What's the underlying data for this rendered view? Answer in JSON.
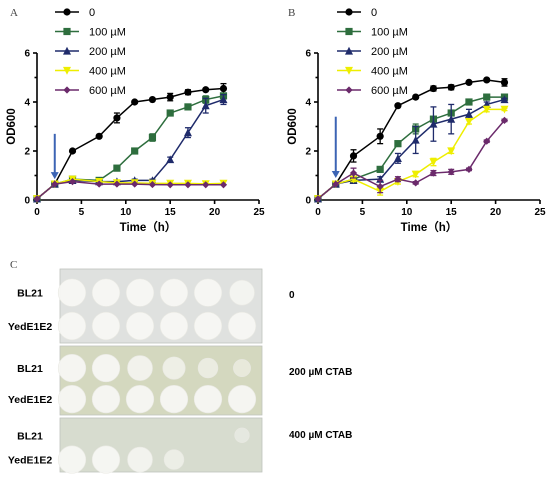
{
  "panel_letters": {
    "a": "A",
    "b": "B",
    "c": "C"
  },
  "chart_data": [
    {
      "type": "line",
      "panel": "A",
      "xlabel": "Time（h）",
      "ylabel": "OD600",
      "xlim": [
        0,
        25
      ],
      "ylim": [
        0,
        6
      ],
      "xticks": [
        "0",
        "5",
        "10",
        "15",
        "20",
        "25"
      ],
      "yticks": [
        "0",
        "2",
        "4",
        "6"
      ],
      "arrow_at": {
        "x": 2,
        "y_from": 2.7,
        "y_to": 0.85
      },
      "series": [
        {
          "name": "0",
          "color": "#000000",
          "marker": "circle",
          "x": [
            0,
            2,
            4,
            7,
            9,
            11,
            13,
            15,
            17,
            19,
            21
          ],
          "y": [
            0.05,
            0.65,
            2.0,
            2.6,
            3.35,
            4.0,
            4.1,
            4.2,
            4.4,
            4.5,
            4.55
          ],
          "err": [
            0,
            0,
            0,
            0.05,
            0.2,
            0.05,
            0.05,
            0.15,
            0.1,
            0.05,
            0.2
          ]
        },
        {
          "name": "100 µM",
          "color": "#2e6e3e",
          "marker": "square",
          "x": [
            0,
            2,
            4,
            7,
            9,
            11,
            13,
            15,
            17,
            19,
            21
          ],
          "y": [
            0.05,
            0.65,
            0.85,
            0.8,
            1.3,
            2.0,
            2.55,
            3.55,
            3.8,
            4.1,
            4.25
          ],
          "err": [
            0,
            0,
            0,
            0.05,
            0.05,
            0.1,
            0.15,
            0.05,
            0.1,
            0.15,
            0.1
          ]
        },
        {
          "name": "200 µM",
          "color": "#1f2b6b",
          "marker": "triangle",
          "x": [
            0,
            2,
            4,
            7,
            9,
            11,
            13,
            15,
            17,
            19,
            21
          ],
          "y": [
            0.05,
            0.65,
            0.8,
            0.75,
            0.75,
            0.8,
            0.8,
            1.65,
            2.75,
            3.85,
            4.1
          ],
          "err": [
            0,
            0,
            0,
            0.05,
            0.05,
            0.05,
            0.05,
            0.1,
            0.2,
            0.3,
            0.2
          ]
        },
        {
          "name": "400 µM",
          "color": "#eeee00",
          "marker": "triangle-down",
          "x": [
            0,
            2,
            4,
            7,
            9,
            11,
            13,
            15,
            17,
            19,
            21
          ],
          "y": [
            0.05,
            0.65,
            0.85,
            0.75,
            0.7,
            0.7,
            0.68,
            0.68,
            0.68,
            0.66,
            0.68
          ],
          "err": [
            0,
            0,
            0,
            0,
            0,
            0,
            0,
            0,
            0,
            0,
            0
          ]
        },
        {
          "name": "600 µM",
          "color": "#6b2a6b",
          "marker": "diamond",
          "x": [
            0,
            2,
            4,
            7,
            9,
            11,
            13,
            15,
            17,
            19,
            21
          ],
          "y": [
            0.05,
            0.65,
            0.75,
            0.65,
            0.65,
            0.65,
            0.63,
            0.62,
            0.62,
            0.62,
            0.62
          ],
          "err": [
            0,
            0,
            0,
            0,
            0,
            0,
            0,
            0,
            0,
            0,
            0
          ]
        }
      ]
    },
    {
      "type": "line",
      "panel": "B",
      "xlabel": "Time（h）",
      "ylabel": "OD600",
      "xlim": [
        0,
        25
      ],
      "ylim": [
        0,
        6
      ],
      "xticks": [
        "0",
        "5",
        "10",
        "15",
        "20",
        "25"
      ],
      "yticks": [
        "0",
        "2",
        "4",
        "6"
      ],
      "arrow_at": {
        "x": 2,
        "y_from": 3.4,
        "y_to": 0.9
      },
      "series": [
        {
          "name": "0",
          "color": "#000000",
          "marker": "circle",
          "x": [
            0,
            2,
            4,
            7,
            9,
            11,
            13,
            15,
            17,
            19,
            21
          ],
          "y": [
            0.05,
            0.65,
            1.8,
            2.6,
            3.85,
            4.2,
            4.55,
            4.6,
            4.8,
            4.9,
            4.8
          ],
          "err": [
            0,
            0,
            0.25,
            0.3,
            0.05,
            0.05,
            0.1,
            0.1,
            0.05,
            0.05,
            0.15
          ]
        },
        {
          "name": "100 µM",
          "color": "#2e6e3e",
          "marker": "square",
          "x": [
            0,
            2,
            4,
            7,
            9,
            11,
            13,
            15,
            17,
            19,
            21
          ],
          "y": [
            0.05,
            0.65,
            0.85,
            1.25,
            2.3,
            2.9,
            3.3,
            3.55,
            4.0,
            4.2,
            4.2
          ],
          "err": [
            0,
            0,
            0.1,
            0.1,
            0.1,
            0.2,
            0.1,
            0.1,
            0.05,
            0.05,
            0.05
          ]
        },
        {
          "name": "200 µM",
          "color": "#1f2b6b",
          "marker": "triangle",
          "x": [
            0,
            2,
            4,
            7,
            9,
            11,
            13,
            15,
            17,
            19,
            21
          ],
          "y": [
            0.05,
            0.65,
            0.8,
            0.85,
            1.7,
            2.45,
            3.1,
            3.3,
            3.5,
            3.9,
            4.1
          ],
          "err": [
            0,
            0,
            0.05,
            0.1,
            0.2,
            0.55,
            0.7,
            0.6,
            0.2,
            0.1,
            0.05
          ]
        },
        {
          "name": "400 µM",
          "color": "#eeee00",
          "marker": "triangle-down",
          "x": [
            0,
            2,
            4,
            7,
            9,
            11,
            13,
            15,
            17,
            19,
            21
          ],
          "y": [
            0.05,
            0.65,
            0.85,
            0.35,
            0.75,
            1.05,
            1.55,
            2.0,
            3.2,
            3.7,
            3.7
          ],
          "err": [
            0,
            0,
            0.1,
            0.15,
            0.1,
            0.1,
            0.15,
            0.1,
            0.1,
            0.1,
            0.05
          ]
        },
        {
          "name": "600 µM",
          "color": "#6b2a6b",
          "marker": "diamond",
          "x": [
            0,
            2,
            4,
            7,
            9,
            11,
            13,
            15,
            17,
            19,
            21
          ],
          "y": [
            0.05,
            0.65,
            1.1,
            0.55,
            0.85,
            0.7,
            1.1,
            1.15,
            1.25,
            2.4,
            3.25
          ],
          "err": [
            0,
            0,
            0.2,
            0.25,
            0.1,
            0.05,
            0.1,
            0.1,
            0.05,
            0.05,
            0.05
          ]
        }
      ]
    }
  ],
  "plates": [
    {
      "rows": [
        "BL21",
        "YedE1E2"
      ],
      "condition": "0",
      "spots": [
        [
          6,
          6,
          6,
          6,
          6,
          5
        ],
        [
          6,
          6,
          6,
          6,
          6,
          6
        ]
      ]
    },
    {
      "rows": [
        "BL21",
        "YedE1E2"
      ],
      "condition": "200 µM CTAB",
      "spots": [
        [
          6,
          6,
          5,
          4,
          3,
          2
        ],
        [
          6,
          6,
          6,
          6,
          6,
          6
        ]
      ]
    },
    {
      "rows": [
        "BL21",
        "YedE1E2"
      ],
      "condition": "400 µM CTAB",
      "spots": [
        [
          0,
          0,
          0,
          0,
          0,
          1
        ],
        [
          6,
          6,
          5,
          3,
          0,
          0
        ]
      ]
    }
  ]
}
